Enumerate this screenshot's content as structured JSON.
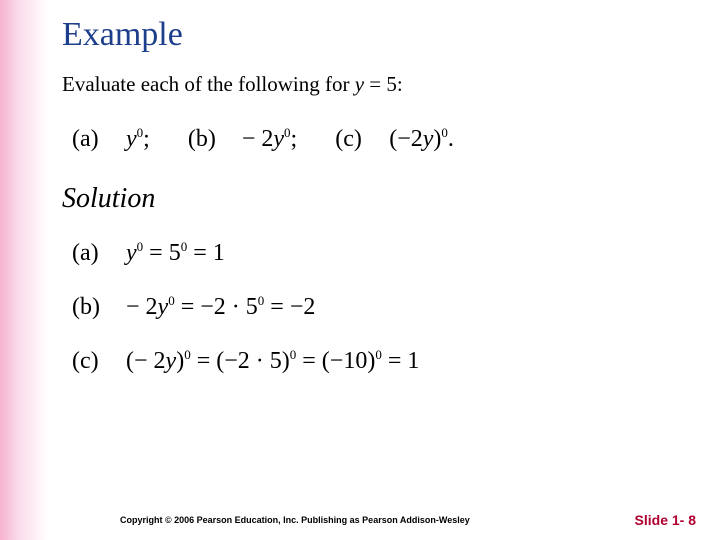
{
  "title": "Example",
  "prompt_prefix": "Evaluate each of the following for ",
  "prompt_var": "y",
  "prompt_eq": " = 5:",
  "problems": {
    "a_label": "(a)",
    "a_expr_var": "y",
    "b_label": "(b)",
    "b_expr_prefix": "− 2",
    "b_expr_var": "y",
    "c_label": "(c)",
    "c_expr_prefix": "(−2",
    "c_expr_var": "y",
    "c_expr_suffix": ")"
  },
  "solution_heading": "Solution",
  "solutions": {
    "a": {
      "label": "(a)",
      "lhs_var": "y",
      "mid_base": "5",
      "rhs": "1"
    },
    "b": {
      "label": "(b)",
      "lhs_prefix": "− 2",
      "lhs_var": "y",
      "mid_prefix": "−2 ·",
      "mid_base": "5",
      "rhs": "−2"
    },
    "c": {
      "label": "(c)",
      "lhs_prefix": "(− 2",
      "lhs_var": "y",
      "lhs_suffix": ")",
      "mid_open": "(−2 · 5)",
      "mid2_open": "(−10)",
      "rhs": "1"
    }
  },
  "footer": {
    "copyright": "Copyright © 2006 Pearson Education, Inc.  Publishing as Pearson Addison-Wesley",
    "slide": "Slide 1- 8"
  },
  "colors": {
    "title": "#1d3e8a",
    "slide_num": "#b00030",
    "band_start": "#f7b3cf",
    "band_end": "#ffffff",
    "text": "#000000",
    "background": "#ffffff"
  }
}
